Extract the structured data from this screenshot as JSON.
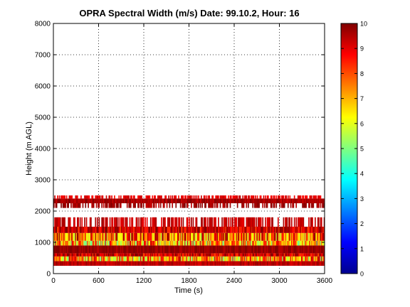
{
  "chart_data": {
    "type": "heatmap",
    "title": "OPRA Spectral Width (m/s)  Date: 99.10.2, Hour: 16",
    "xlabel": "Time (s)",
    "ylabel": "Height (m AGL)",
    "xlim": [
      0,
      3600
    ],
    "ylim": [
      0,
      8000
    ],
    "x_ticks": [
      "0",
      "600",
      "1200",
      "1800",
      "2400",
      "3000",
      "3600"
    ],
    "y_ticks": [
      "0",
      "1000",
      "2000",
      "3000",
      "4000",
      "5000",
      "6000",
      "7000",
      "8000"
    ],
    "grid": true,
    "colorbar": {
      "colormap": "jet",
      "range": [
        0,
        10
      ],
      "ticks": [
        "0",
        "1",
        "2",
        "3",
        "4",
        "5",
        "6",
        "7",
        "8",
        "9",
        "10"
      ]
    },
    "bands": [
      {
        "y_min": 250,
        "y_max": 400,
        "value": 9.4,
        "variability": "low"
      },
      {
        "y_min": 400,
        "y_max": 550,
        "value": 7.2,
        "variability": "high"
      },
      {
        "y_min": 550,
        "y_max": 650,
        "value": 9.2,
        "variability": "medium"
      },
      {
        "y_min": 650,
        "y_max": 900,
        "value": 9.8,
        "variability": "low"
      },
      {
        "y_min": 900,
        "y_max": 1050,
        "value": 7.0,
        "variability": "high"
      },
      {
        "y_min": 1050,
        "y_max": 1300,
        "value": 7.8,
        "variability": "high"
      },
      {
        "y_min": 1300,
        "y_max": 1500,
        "value": 9.2,
        "variability": "medium"
      },
      {
        "y_min": 1500,
        "y_max": 1800,
        "value": 9.3,
        "variability": "sparse"
      },
      {
        "y_min": 2250,
        "y_max": 2400,
        "value": 9.6,
        "variability": "low"
      },
      {
        "y_min": 2100,
        "y_max": 2250,
        "value": 9.7,
        "variability": "sparse"
      },
      {
        "y_min": 2400,
        "y_max": 2500,
        "value": 9.0,
        "variability": "sparse"
      }
    ]
  }
}
